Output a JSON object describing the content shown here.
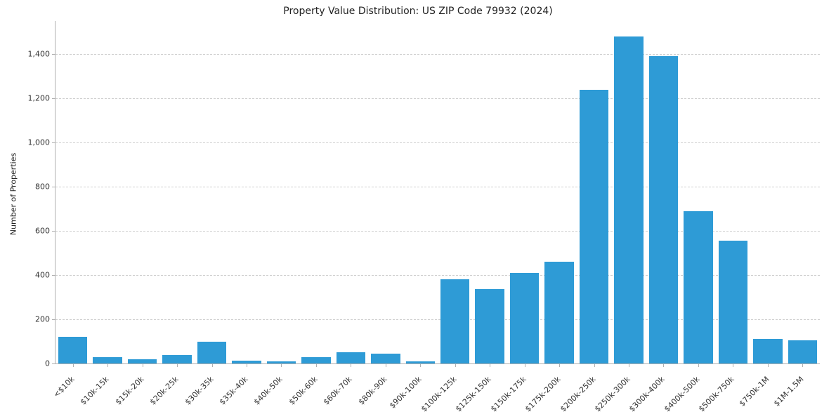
{
  "chart_data": {
    "type": "bar",
    "title": "Property Value Distribution: US ZIP Code 79932 (2024)",
    "xlabel": "",
    "ylabel": "Number of Properties",
    "categories": [
      "<$10k",
      "$10k-15k",
      "$15k-20k",
      "$20k-25k",
      "$30k-35k",
      "$35k-40k",
      "$40k-50k",
      "$50k-60k",
      "$60k-70k",
      "$80k-90k",
      "$90k-100k",
      "$100k-125k",
      "$125k-150k",
      "$150k-175k",
      "$175k-200k",
      "$200k-250k",
      "$250k-300k",
      "$300k-400k",
      "$400k-500k",
      "$500k-750k",
      "$750k-1M",
      "$1M-1.5M"
    ],
    "values": [
      120,
      30,
      20,
      38,
      100,
      12,
      8,
      28,
      50,
      45,
      8,
      380,
      338,
      410,
      462,
      1240,
      1480,
      1390,
      690,
      555,
      112,
      105
    ],
    "ylim": [
      0,
      1550
    ],
    "yticks": [
      0,
      200,
      400,
      600,
      800,
      1000,
      1200,
      1400
    ],
    "ytick_labels": [
      "0",
      "200",
      "400",
      "600",
      "800",
      "1,000",
      "1,200",
      "1,400"
    ],
    "grid": "horizontal-dashed",
    "legend": "none",
    "bar_color": "#2E9BD6"
  }
}
